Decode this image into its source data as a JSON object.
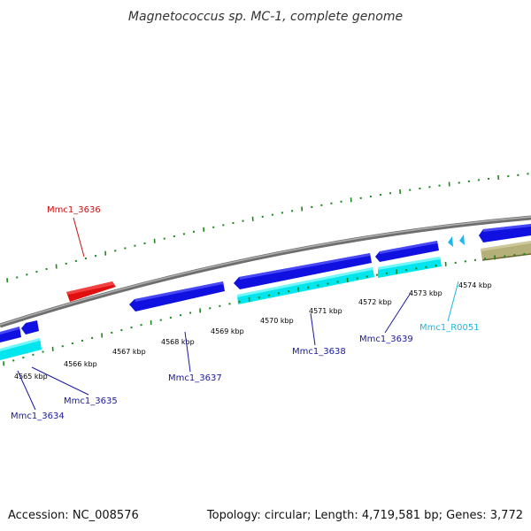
{
  "title": "Magnetococcus sp. MC-1, complete genome",
  "accession": "Accession: NC_008576",
  "summary": "Topology: circular; Length: 4,719,581 bp; Genes: 3,772",
  "colors": {
    "backbone": "#808080",
    "cds_blue": "#1010e0",
    "cds_cyan": "#00e5ee",
    "cds_red": "#e01010",
    "cds_khaki": "#b5b07a",
    "rna_cyan": "#1ab8f0",
    "tick_green": "#1a8a1a",
    "label_blue": "#1a1aa0",
    "label_red": "#cc1010",
    "label_cyan": "#1ab8e0"
  },
  "ruler": {
    "unit_label": "kbp",
    "labels": [
      "4565 kbp",
      "4566 kbp",
      "4567 kbp",
      "4568 kbp",
      "4569 kbp",
      "4570 kbp",
      "4571 kbp",
      "4572 kbp",
      "4573 kbp",
      "4574 kbp"
    ]
  },
  "genes": [
    {
      "name": "Mmc1_3634",
      "type": "CDS",
      "color": "label_blue"
    },
    {
      "name": "Mmc1_3635",
      "type": "CDS",
      "color": "label_blue"
    },
    {
      "name": "Mmc1_3636",
      "type": "CDS",
      "color": "label_red"
    },
    {
      "name": "Mmc1_3637",
      "type": "CDS",
      "color": "label_blue"
    },
    {
      "name": "Mmc1_3638",
      "type": "CDS",
      "color": "label_blue"
    },
    {
      "name": "Mmc1_3639",
      "type": "CDS",
      "color": "label_blue"
    },
    {
      "name": "Mmc1_R0051",
      "type": "RNA",
      "color": "label_cyan"
    }
  ]
}
